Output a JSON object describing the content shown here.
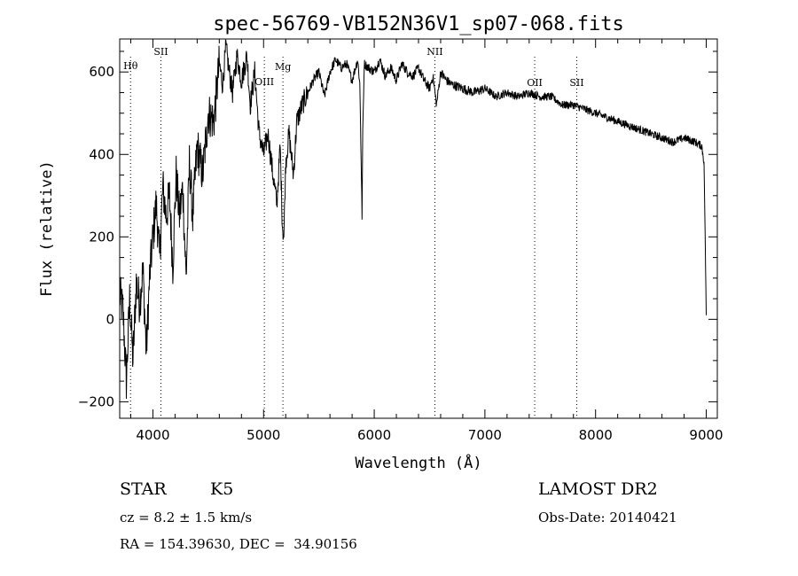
{
  "chart_data": {
    "type": "line",
    "title": "spec-56769-VB152N36V1_sp07-068.fits",
    "xlabel": "Wavelength (Å)",
    "ylabel": "Flux (relative)",
    "xlim": [
      3700,
      9100
    ],
    "ylim": [
      -240,
      680
    ],
    "xticks": [
      4000,
      5000,
      6000,
      7000,
      8000,
      9000
    ],
    "yticks": [
      -200,
      0,
      200,
      400,
      600
    ],
    "grid": false,
    "series": [
      {
        "color": "#000000",
        "x": [
          3700,
          3730,
          3760,
          3790,
          3820,
          3850,
          3880,
          3910,
          3940,
          3970,
          4000,
          4030,
          4060,
          4090,
          4120,
          4150,
          4180,
          4210,
          4240,
          4270,
          4300,
          4330,
          4360,
          4400,
          4450,
          4500,
          4550,
          4600,
          4630,
          4660,
          4690,
          4720,
          4760,
          4800,
          4850,
          4880,
          4920,
          4960,
          5000,
          5040,
          5080,
          5120,
          5150,
          5170,
          5183,
          5200,
          5230,
          5270,
          5300,
          5350,
          5400,
          5450,
          5500,
          5550,
          5600,
          5650,
          5700,
          5750,
          5800,
          5850,
          5870,
          5890,
          5896,
          5910,
          5950,
          6000,
          6050,
          6100,
          6150,
          6200,
          6250,
          6300,
          6350,
          6400,
          6450,
          6500,
          6530,
          6563,
          6600,
          6650,
          6700,
          6800,
          6900,
          7000,
          7100,
          7200,
          7300,
          7400,
          7500,
          7600,
          7700,
          7800,
          7900,
          8000,
          8100,
          8200,
          8300,
          8400,
          8500,
          8600,
          8700,
          8800,
          8900,
          8960,
          8980,
          8990,
          9000
        ],
        "y": [
          60,
          20,
          -150,
          50,
          -100,
          90,
          40,
          120,
          -80,
          100,
          200,
          280,
          150,
          320,
          250,
          300,
          130,
          350,
          250,
          320,
          100,
          380,
          250,
          420,
          350,
          500,
          480,
          620,
          570,
          660,
          600,
          550,
          640,
          580,
          640,
          520,
          600,
          450,
          400,
          450,
          360,
          280,
          420,
          230,
          200,
          380,
          450,
          350,
          480,
          520,
          550,
          580,
          600,
          540,
          600,
          630,
          610,
          620,
          580,
          630,
          570,
          250,
          450,
          620,
          610,
          600,
          630,
          590,
          610,
          580,
          620,
          600,
          590,
          610,
          580,
          560,
          590,
          520,
          600,
          580,
          570,
          560,
          550,
          560,
          540,
          550,
          540,
          550,
          540,
          540,
          520,
          520,
          510,
          500,
          490,
          480,
          470,
          460,
          450,
          440,
          430,
          440,
          430,
          420,
          380,
          200,
          10
        ]
      }
    ],
    "annotations": [
      {
        "label": "Hθ",
        "x": 3798
      },
      {
        "label": "SII",
        "x": 4072
      },
      {
        "label": "OIII",
        "x": 5007
      },
      {
        "label": "Mg",
        "x": 5175
      },
      {
        "label": "NII",
        "x": 6548
      },
      {
        "label": "OII",
        "x": 7450
      },
      {
        "label": "SII",
        "x": 7830
      }
    ]
  },
  "footer": {
    "object_class": "STAR",
    "subclass": "K5",
    "cz": "cz = 8.2 ± 1.5 km/s",
    "radec": "RA = 154.39630, DEC =  34.90156",
    "survey": "LAMOST DR2",
    "obs_date": "Obs-Date: 20140421"
  }
}
